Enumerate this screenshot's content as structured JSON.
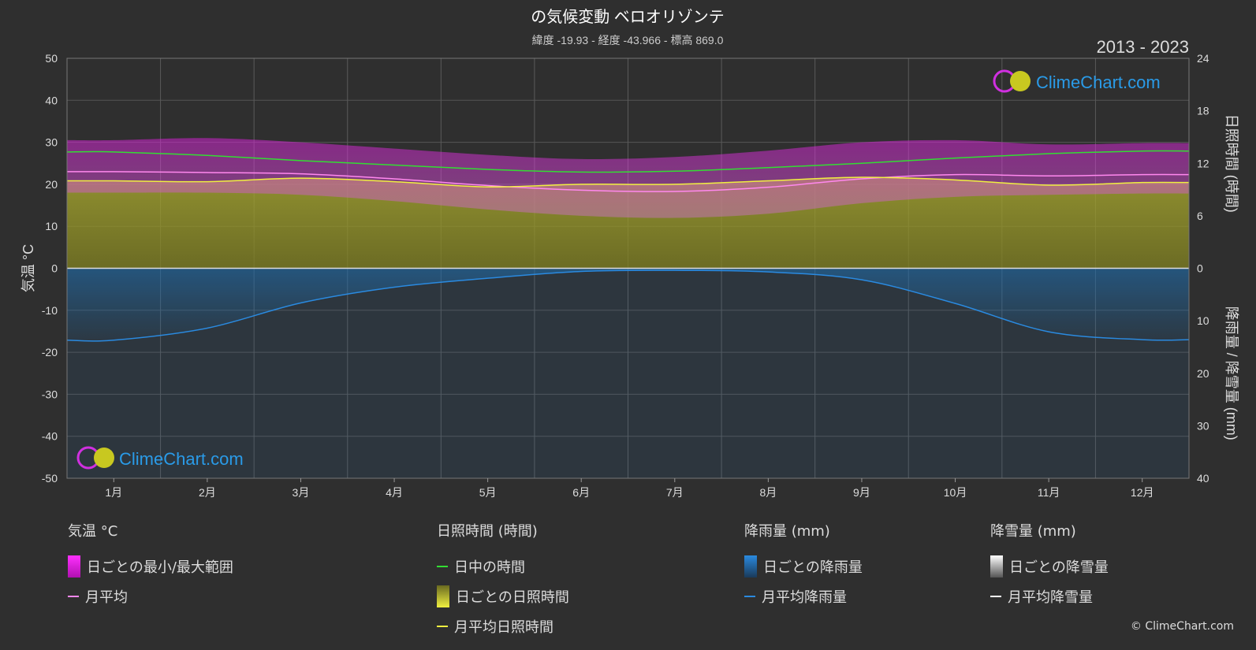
{
  "title": "の気候変動 ベロオリゾンテ",
  "subtitle": "緯度 -19.93 - 経度 -43.966 - 標高 869.0",
  "year_range": "2013 - 2023",
  "brand": "ClimeChart.com",
  "copyright": "© ClimeChart.com",
  "colors": {
    "background": "#2f2f2f",
    "temp_range": "#e020e0",
    "temp_avg": "#ff88ee",
    "daylight": "#33dd33",
    "sunshine_fill": "#a8a830",
    "sunshine_avg": "#f0f040",
    "rain_fill": "#1e6fb0",
    "rain_avg": "#2a8ae0",
    "snow": "#ffffff",
    "brand": "#2a9be8"
  },
  "chart_data": {
    "type": "line",
    "categories": [
      "1月",
      "2月",
      "3月",
      "4月",
      "5月",
      "6月",
      "7月",
      "8月",
      "9月",
      "10月",
      "11月",
      "12月"
    ],
    "left_axis": {
      "label": "気温 °C",
      "min": -50,
      "max": 50,
      "ticks": [
        50,
        40,
        30,
        20,
        10,
        0,
        -10,
        -20,
        -30,
        -40,
        -50
      ]
    },
    "right_axis_top": {
      "label": "日照時間 (時間)",
      "min": 0,
      "max": 24,
      "ticks": [
        24,
        18,
        12,
        6,
        0
      ]
    },
    "right_axis_bottom": {
      "label": "降雨量 / 降雪量 (mm)",
      "min": 0,
      "max": 40,
      "ticks": [
        0,
        10,
        20,
        30,
        40
      ]
    },
    "series": [
      {
        "name": "日中の時間",
        "axis": "sunshine",
        "values": [
          13.3,
          12.9,
          12.3,
          11.8,
          11.3,
          11.0,
          11.1,
          11.5,
          12.0,
          12.6,
          13.1,
          13.4
        ]
      },
      {
        "name": "月平均日照時間",
        "axis": "sunshine",
        "values": [
          10.0,
          9.9,
          10.3,
          9.9,
          9.3,
          9.6,
          9.6,
          10.0,
          10.4,
          10.1,
          9.5,
          9.8
        ]
      },
      {
        "name": "月平均",
        "axis": "temperature",
        "values": [
          23.0,
          22.8,
          22.5,
          21.3,
          19.7,
          18.6,
          18.3,
          19.3,
          21.3,
          22.3,
          22.0,
          22.3
        ]
      },
      {
        "name": "月平均降雨量",
        "axis": "precipitation",
        "values": [
          13.7,
          11.4,
          6.6,
          3.6,
          1.9,
          0.6,
          0.4,
          0.7,
          2.2,
          6.7,
          12.1,
          13.6
        ]
      },
      {
        "name": "月平均降雪量",
        "axis": "precipitation",
        "values": [
          0,
          0,
          0,
          0,
          0,
          0,
          0,
          0,
          0,
          0,
          0,
          0
        ]
      }
    ],
    "temp_range_monthly": {
      "min": [
        18.0,
        18.0,
        17.5,
        16.0,
        14.0,
        12.5,
        12.0,
        13.0,
        15.5,
        17.0,
        17.5,
        17.8
      ],
      "max": [
        30.5,
        31.0,
        30.0,
        28.5,
        27.0,
        26.0,
        26.5,
        28.0,
        30.0,
        30.5,
        29.5,
        29.8
      ]
    },
    "grid": true
  },
  "legend": {
    "temperature": {
      "head": "気温 °C",
      "items": [
        "日ごとの最小/最大範囲",
        "月平均"
      ]
    },
    "sunshine": {
      "head": "日照時間 (時間)",
      "items": [
        "日中の時間",
        "日ごとの日照時間",
        "月平均日照時間"
      ]
    },
    "rain": {
      "head": "降雨量 (mm)",
      "items": [
        "日ごとの降雨量",
        "月平均降雨量"
      ]
    },
    "snow": {
      "head": "降雪量 (mm)",
      "items": [
        "日ごとの降雪量",
        "月平均降雪量"
      ]
    }
  }
}
